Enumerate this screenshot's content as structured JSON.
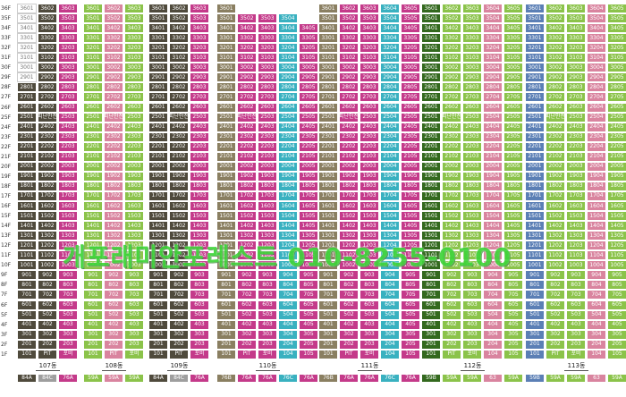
{
  "watermark": "개포래미안포레스트 010-8255-0100",
  "floor_labels": [
    "36F",
    "35F",
    "34F",
    "33F",
    "32F",
    "31F",
    "30F",
    "29F",
    "28F",
    "27F",
    "26F",
    "25F",
    "24F",
    "23F",
    "22F",
    "21F",
    "20F",
    "19F",
    "18F",
    "17F",
    "16F",
    "15F",
    "14F",
    "13F",
    "12F",
    "11F",
    "10F",
    "9F",
    "8F",
    "7F",
    "6F",
    "5F",
    "4F",
    "3F",
    "2F",
    "1F"
  ],
  "pilotis_label": "PIT",
  "service_label": "포비",
  "community_label": "피난안전",
  "colors": {
    "dark": "#4f4a3c",
    "pink": "#c43a8a",
    "olive": "#8a7f61",
    "teal": "#39b1c0",
    "lightPink": "#d9849f",
    "green": "#8bc34a",
    "blue": "#5b7fb5",
    "empty": "#ffffff",
    "grey": "#9e9e9e",
    "darkGreen": "#33691e"
  },
  "buildings": [
    {
      "name": "107동",
      "types": [
        "84A",
        "84C",
        "76A"
      ],
      "type_colors": [
        "dark",
        "grey",
        "pink"
      ],
      "columns": [
        {
          "col": 1,
          "top": 36,
          "color": "dark"
        },
        {
          "col": 2,
          "top": 36,
          "color": "dark"
        },
        {
          "col": 3,
          "top": 36,
          "color": "pink"
        }
      ]
    },
    {
      "name": "108동",
      "types": [
        "59A",
        "59A",
        "59A"
      ],
      "type_colors": [
        "green",
        "lightPink",
        "green"
      ],
      "columns": [
        {
          "col": 1,
          "top": 36,
          "color": "green"
        },
        {
          "col": 2,
          "top": 36,
          "color": "lightPink"
        },
        {
          "col": 3,
          "top": 36,
          "color": "green"
        }
      ]
    },
    {
      "name": "109동",
      "types": [
        "84A",
        "84C",
        "76A"
      ],
      "type_colors": [
        "dark",
        "grey",
        "pink"
      ],
      "columns": [
        {
          "col": 1,
          "top": 36,
          "color": "dark"
        },
        {
          "col": 2,
          "top": 36,
          "color": "dark"
        },
        {
          "col": 3,
          "top": 36,
          "color": "pink"
        }
      ]
    },
    {
      "name": "110동",
      "types": [
        "76B",
        "76A",
        "76A",
        "76C",
        "76A"
      ],
      "type_colors": [
        "olive",
        "pink",
        "pink",
        "teal",
        "pink"
      ],
      "columns": [
        {
          "col": 1,
          "top": 36,
          "color": "olive"
        },
        {
          "col": 2,
          "top": 35,
          "color": "pink"
        },
        {
          "col": 3,
          "top": 35,
          "color": "pink"
        },
        {
          "col": 4,
          "top": 35,
          "color": "teal"
        },
        {
          "col": 5,
          "top": 34,
          "color": "pink"
        }
      ]
    },
    {
      "name": "111동",
      "types": [
        "76B",
        "76A",
        "76A",
        "76C",
        "76A"
      ],
      "type_colors": [
        "olive",
        "pink",
        "pink",
        "teal",
        "pink"
      ],
      "columns": [
        {
          "col": 1,
          "top": 36,
          "color": "olive"
        },
        {
          "col": 2,
          "top": 36,
          "color": "pink"
        },
        {
          "col": 3,
          "top": 36,
          "color": "pink"
        },
        {
          "col": 4,
          "top": 36,
          "color": "teal"
        },
        {
          "col": 5,
          "top": 36,
          "color": "pink"
        }
      ]
    },
    {
      "name": "112동",
      "types": [
        "59B",
        "59A",
        "59A",
        "63",
        "59A"
      ],
      "type_colors": [
        "darkGreen",
        "green",
        "green",
        "lightPink",
        "green"
      ],
      "columns": [
        {
          "col": 1,
          "top": 36,
          "color": "darkGreen"
        },
        {
          "col": 2,
          "top": 36,
          "color": "green"
        },
        {
          "col": 3,
          "top": 36,
          "color": "green"
        },
        {
          "col": 4,
          "top": 36,
          "color": "lightPink"
        },
        {
          "col": 5,
          "top": 36,
          "color": "green"
        }
      ]
    },
    {
      "name": "113동",
      "types": [
        "59B",
        "59A",
        "59A",
        "63",
        "59A"
      ],
      "type_colors": [
        "blue",
        "green",
        "green",
        "lightPink",
        "green"
      ],
      "columns": [
        {
          "col": 1,
          "top": 36,
          "color": "blue"
        },
        {
          "col": 2,
          "top": 36,
          "color": "green"
        },
        {
          "col": 3,
          "top": 36,
          "color": "green"
        },
        {
          "col": 4,
          "top": 36,
          "color": "lightPink"
        },
        {
          "col": 5,
          "top": 36,
          "color": "green"
        }
      ]
    }
  ]
}
